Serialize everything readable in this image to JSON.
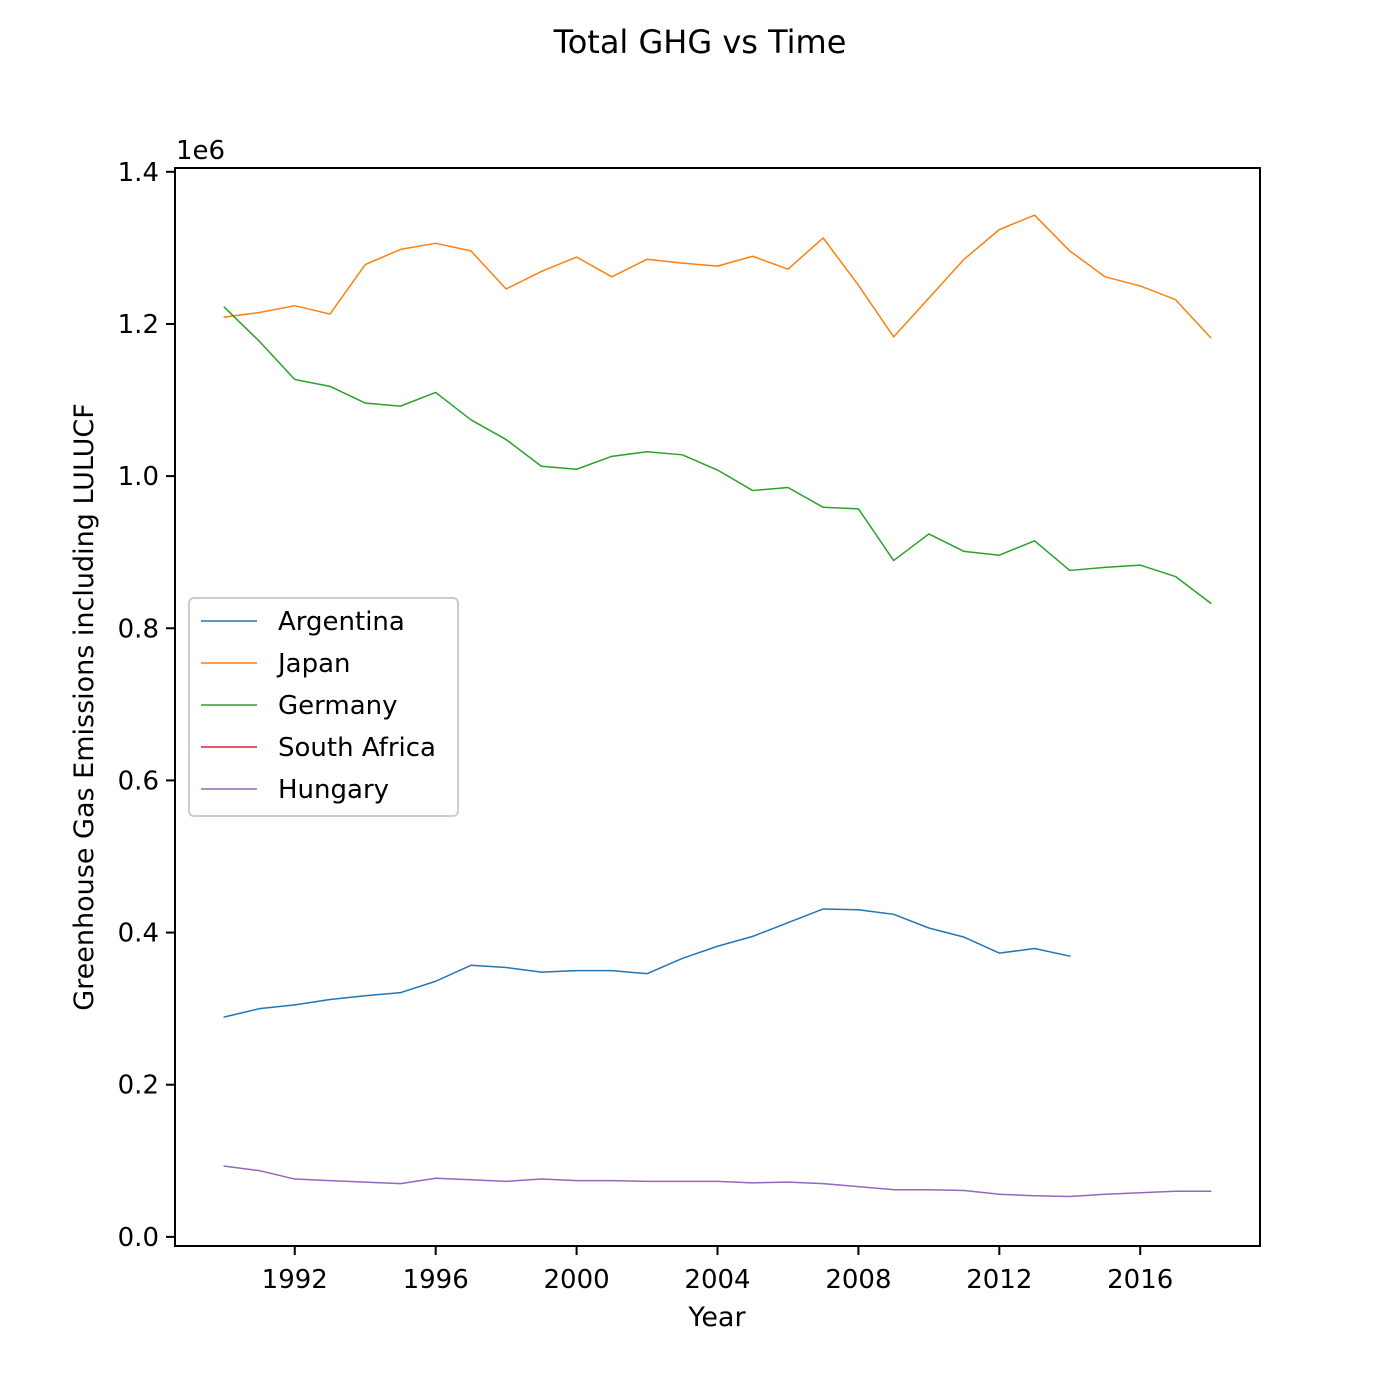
{
  "chart_data": {
    "type": "line",
    "title": "Total GHG vs Time",
    "xlabel": "Year",
    "ylabel": "Greenhouse Gas Emissions including LULUCF",
    "y_offset_text": "1e6",
    "xlim": [
      1988.6,
      2019.4
    ],
    "ylim": [
      -0.012,
      1.405
    ],
    "x_ticks": [
      1992,
      1996,
      2000,
      2004,
      2008,
      2012,
      2016
    ],
    "x_tick_labels": [
      "1992",
      "1996",
      "2000",
      "2004",
      "2008",
      "2012",
      "2016"
    ],
    "y_ticks": [
      0.0,
      0.2,
      0.4,
      0.6,
      0.8,
      1.0,
      1.2,
      1.4
    ],
    "y_tick_labels": [
      "0.0",
      "0.2",
      "0.4",
      "0.6",
      "0.8",
      "1.0",
      "1.2",
      "1.4"
    ],
    "grid": false,
    "legend_position": "center-left",
    "series": [
      {
        "name": "Argentina",
        "color": "#1f77b4",
        "x": [
          1990,
          1991,
          1992,
          1993,
          1994,
          1995,
          1996,
          1997,
          1998,
          1999,
          2000,
          2001,
          2002,
          2003,
          2004,
          2005,
          2006,
          2007,
          2008,
          2009,
          2010,
          2011,
          2012,
          2013,
          2014
        ],
        "values": [
          0.289,
          0.3,
          0.305,
          0.312,
          0.317,
          0.321,
          0.336,
          0.357,
          0.354,
          0.348,
          0.35,
          0.35,
          0.346,
          0.366,
          0.382,
          0.395,
          0.413,
          0.431,
          0.43,
          0.424,
          0.406,
          0.394,
          0.373,
          0.379,
          0.369
        ]
      },
      {
        "name": "Japan",
        "color": "#ff7f0e",
        "x": [
          1990,
          1991,
          1992,
          1993,
          1994,
          1995,
          1996,
          1997,
          1998,
          1999,
          2000,
          2001,
          2002,
          2003,
          2004,
          2005,
          2006,
          2007,
          2008,
          2009,
          2010,
          2011,
          2012,
          2013,
          2014,
          2015,
          2016,
          2017,
          2018
        ],
        "values": [
          1.209,
          1.215,
          1.224,
          1.213,
          1.278,
          1.298,
          1.306,
          1.296,
          1.246,
          1.269,
          1.288,
          1.262,
          1.285,
          1.28,
          1.276,
          1.289,
          1.272,
          1.313,
          1.251,
          1.183,
          1.234,
          1.285,
          1.324,
          1.343,
          1.296,
          1.262,
          1.25,
          1.232,
          1.182
        ]
      },
      {
        "name": "Germany",
        "color": "#2ca02c",
        "x": [
          1990,
          1991,
          1992,
          1993,
          1994,
          1995,
          1996,
          1997,
          1998,
          1999,
          2000,
          2001,
          2002,
          2003,
          2004,
          2005,
          2006,
          2007,
          2008,
          2009,
          2010,
          2011,
          2012,
          2013,
          2014,
          2015,
          2016,
          2017,
          2018
        ],
        "values": [
          1.222,
          1.177,
          1.127,
          1.118,
          1.096,
          1.092,
          1.11,
          1.074,
          1.048,
          1.013,
          1.009,
          1.026,
          1.032,
          1.028,
          1.008,
          0.981,
          0.985,
          0.959,
          0.957,
          0.889,
          0.924,
          0.901,
          0.896,
          0.915,
          0.876,
          0.88,
          0.883,
          0.868,
          0.833
        ]
      },
      {
        "name": "South Africa",
        "color": "#d62728",
        "x": [],
        "values": []
      },
      {
        "name": "Hungary",
        "color": "#9467bd",
        "x": [
          1990,
          1991,
          1992,
          1993,
          1994,
          1995,
          1996,
          1997,
          1998,
          1999,
          2000,
          2001,
          2002,
          2003,
          2004,
          2005,
          2006,
          2007,
          2008,
          2009,
          2010,
          2011,
          2012,
          2013,
          2014,
          2015,
          2016,
          2017,
          2018
        ],
        "values": [
          0.093,
          0.087,
          0.076,
          0.074,
          0.072,
          0.07,
          0.077,
          0.075,
          0.073,
          0.076,
          0.074,
          0.074,
          0.073,
          0.073,
          0.073,
          0.071,
          0.072,
          0.07,
          0.066,
          0.062,
          0.062,
          0.061,
          0.056,
          0.054,
          0.053,
          0.056,
          0.058,
          0.06,
          0.06
        ]
      }
    ]
  }
}
